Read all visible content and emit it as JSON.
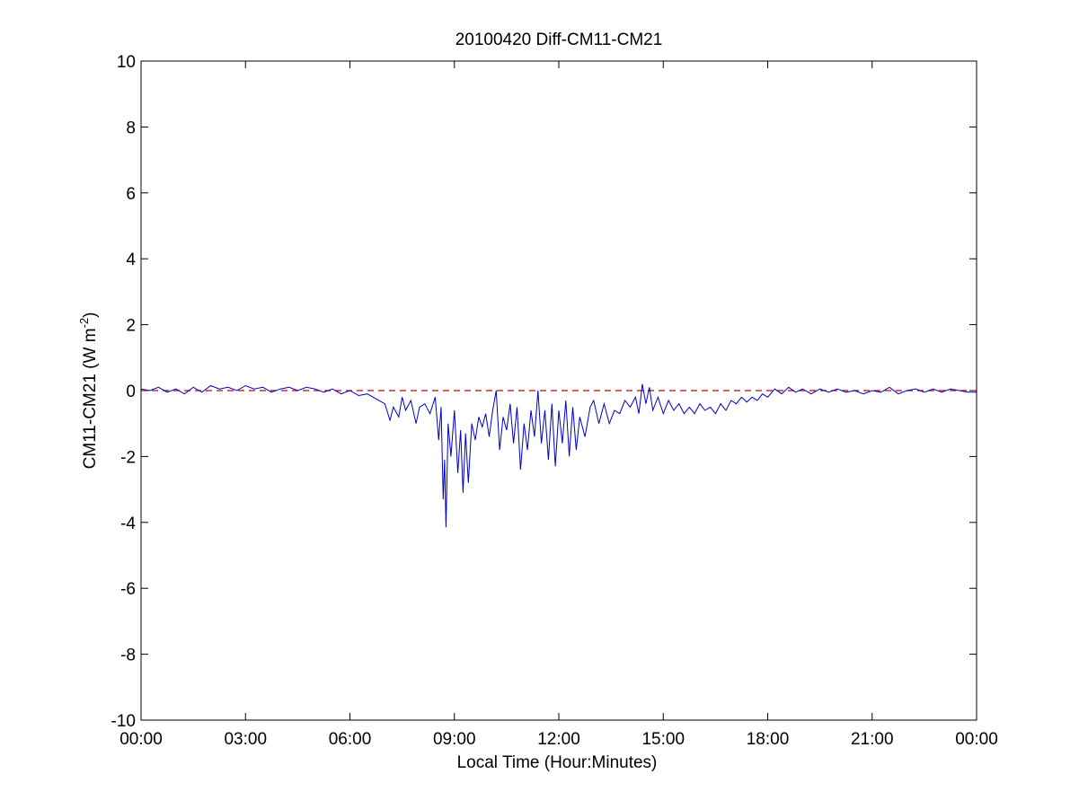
{
  "chart_data": {
    "type": "line",
    "title": "20100420 Diff-CM11-CM21",
    "xlabel": "Local Time (Hour:Minutes)",
    "ylabel": {
      "base": "CM11-CM21 (W m",
      "sup": "-2",
      "close": ")"
    },
    "xlim": [
      0,
      24
    ],
    "ylim": [
      -10,
      10
    ],
    "x_tick_values": [
      0,
      3,
      6,
      9,
      12,
      15,
      18,
      21,
      24
    ],
    "x_tick_labels": [
      "00:00",
      "03:00",
      "06:00",
      "09:00",
      "12:00",
      "15:00",
      "18:00",
      "21:00",
      "00:00"
    ],
    "y_tick_values": [
      10,
      8,
      6,
      4,
      2,
      0,
      -2,
      -4,
      -6,
      -8,
      -10
    ],
    "y_tick_labels": [
      "10",
      "8",
      "6",
      "4",
      "2",
      "0",
      "-2",
      "-4",
      "-6",
      "-8",
      "-10"
    ],
    "grid": false,
    "reference_line": {
      "y": 0,
      "style": "dashed",
      "color": "#cc0000"
    },
    "series": [
      {
        "color": "#0000cc",
        "x_unit": "hours",
        "points": [
          [
            0.0,
            0.05
          ],
          [
            0.25,
            0.0
          ],
          [
            0.5,
            0.1
          ],
          [
            0.75,
            -0.05
          ],
          [
            1.0,
            0.05
          ],
          [
            1.25,
            -0.1
          ],
          [
            1.5,
            0.1
          ],
          [
            1.75,
            -0.05
          ],
          [
            2.0,
            0.15
          ],
          [
            2.25,
            0.05
          ],
          [
            2.5,
            0.1
          ],
          [
            2.75,
            0.0
          ],
          [
            3.0,
            0.15
          ],
          [
            3.25,
            0.05
          ],
          [
            3.5,
            0.1
          ],
          [
            3.75,
            -0.05
          ],
          [
            4.0,
            0.05
          ],
          [
            4.25,
            0.1
          ],
          [
            4.5,
            0.0
          ],
          [
            4.75,
            0.1
          ],
          [
            5.0,
            0.05
          ],
          [
            5.25,
            -0.05
          ],
          [
            5.5,
            0.05
          ],
          [
            5.75,
            -0.1
          ],
          [
            6.0,
            0.0
          ],
          [
            6.25,
            -0.15
          ],
          [
            6.5,
            -0.1
          ],
          [
            6.75,
            -0.25
          ],
          [
            7.0,
            -0.4
          ],
          [
            7.15,
            -0.9
          ],
          [
            7.25,
            -0.5
          ],
          [
            7.4,
            -0.8
          ],
          [
            7.5,
            -0.2
          ],
          [
            7.6,
            -0.6
          ],
          [
            7.75,
            -0.3
          ],
          [
            7.9,
            -1.0
          ],
          [
            8.0,
            -0.5
          ],
          [
            8.15,
            -0.4
          ],
          [
            8.3,
            -0.7
          ],
          [
            8.45,
            -0.2
          ],
          [
            8.55,
            -1.5
          ],
          [
            8.62,
            -0.5
          ],
          [
            8.68,
            -3.3
          ],
          [
            8.72,
            -2.1
          ],
          [
            8.76,
            -4.15
          ],
          [
            8.82,
            -1.0
          ],
          [
            8.9,
            -2.0
          ],
          [
            9.0,
            -0.6
          ],
          [
            9.1,
            -2.5
          ],
          [
            9.18,
            -1.2
          ],
          [
            9.25,
            -3.1
          ],
          [
            9.32,
            -1.3
          ],
          [
            9.4,
            -2.8
          ],
          [
            9.5,
            -1.0
          ],
          [
            9.6,
            -1.5
          ],
          [
            9.7,
            -0.8
          ],
          [
            9.8,
            -1.1
          ],
          [
            9.9,
            -0.7
          ],
          [
            10.0,
            -1.4
          ],
          [
            10.1,
            -0.6
          ],
          [
            10.2,
            0.0
          ],
          [
            10.3,
            -1.8
          ],
          [
            10.4,
            -0.8
          ],
          [
            10.5,
            -1.2
          ],
          [
            10.6,
            -0.4
          ],
          [
            10.7,
            -1.6
          ],
          [
            10.8,
            -0.5
          ],
          [
            10.9,
            -2.4
          ],
          [
            11.0,
            -1.0
          ],
          [
            11.1,
            -1.8
          ],
          [
            11.2,
            -0.6
          ],
          [
            11.3,
            -1.4
          ],
          [
            11.4,
            0.0
          ],
          [
            11.5,
            -1.6
          ],
          [
            11.6,
            -0.6
          ],
          [
            11.7,
            -2.1
          ],
          [
            11.8,
            -0.4
          ],
          [
            11.9,
            -2.3
          ],
          [
            12.0,
            -0.6
          ],
          [
            12.1,
            -1.6
          ],
          [
            12.2,
            -0.3
          ],
          [
            12.3,
            -2.0
          ],
          [
            12.4,
            -0.5
          ],
          [
            12.5,
            -1.8
          ],
          [
            12.6,
            -0.8
          ],
          [
            12.75,
            -1.4
          ],
          [
            12.9,
            -0.5
          ],
          [
            13.0,
            -0.3
          ],
          [
            13.15,
            -1.0
          ],
          [
            13.3,
            -0.4
          ],
          [
            13.45,
            -1.0
          ],
          [
            13.6,
            -0.6
          ],
          [
            13.75,
            -0.7
          ],
          [
            13.9,
            -0.3
          ],
          [
            14.05,
            -0.5
          ],
          [
            14.2,
            -0.2
          ],
          [
            14.3,
            -0.7
          ],
          [
            14.4,
            0.2
          ],
          [
            14.5,
            -0.4
          ],
          [
            14.6,
            0.1
          ],
          [
            14.7,
            -0.6
          ],
          [
            14.85,
            -0.2
          ],
          [
            15.0,
            -0.7
          ],
          [
            15.15,
            -0.3
          ],
          [
            15.3,
            -0.6
          ],
          [
            15.45,
            -0.4
          ],
          [
            15.6,
            -0.7
          ],
          [
            15.75,
            -0.5
          ],
          [
            15.9,
            -0.7
          ],
          [
            16.05,
            -0.4
          ],
          [
            16.2,
            -0.6
          ],
          [
            16.35,
            -0.5
          ],
          [
            16.5,
            -0.7
          ],
          [
            16.65,
            -0.4
          ],
          [
            16.8,
            -0.6
          ],
          [
            16.95,
            -0.3
          ],
          [
            17.1,
            -0.4
          ],
          [
            17.25,
            -0.2
          ],
          [
            17.4,
            -0.35
          ],
          [
            17.55,
            -0.2
          ],
          [
            17.7,
            -0.3
          ],
          [
            17.85,
            -0.1
          ],
          [
            18.0,
            -0.2
          ],
          [
            18.2,
            0.05
          ],
          [
            18.4,
            -0.1
          ],
          [
            18.6,
            0.1
          ],
          [
            18.8,
            -0.05
          ],
          [
            19.0,
            0.05
          ],
          [
            19.25,
            -0.1
          ],
          [
            19.5,
            0.05
          ],
          [
            19.75,
            -0.05
          ],
          [
            20.0,
            0.05
          ],
          [
            20.25,
            -0.05
          ],
          [
            20.5,
            0.0
          ],
          [
            20.75,
            -0.1
          ],
          [
            21.0,
            0.0
          ],
          [
            21.25,
            -0.05
          ],
          [
            21.5,
            0.1
          ],
          [
            21.75,
            -0.1
          ],
          [
            22.0,
            0.0
          ],
          [
            22.25,
            0.05
          ],
          [
            22.5,
            -0.05
          ],
          [
            22.75,
            0.05
          ],
          [
            23.0,
            -0.05
          ],
          [
            23.25,
            0.05
          ],
          [
            23.5,
            0.0
          ],
          [
            23.75,
            -0.05
          ],
          [
            24.0,
            -0.05
          ]
        ]
      }
    ]
  }
}
